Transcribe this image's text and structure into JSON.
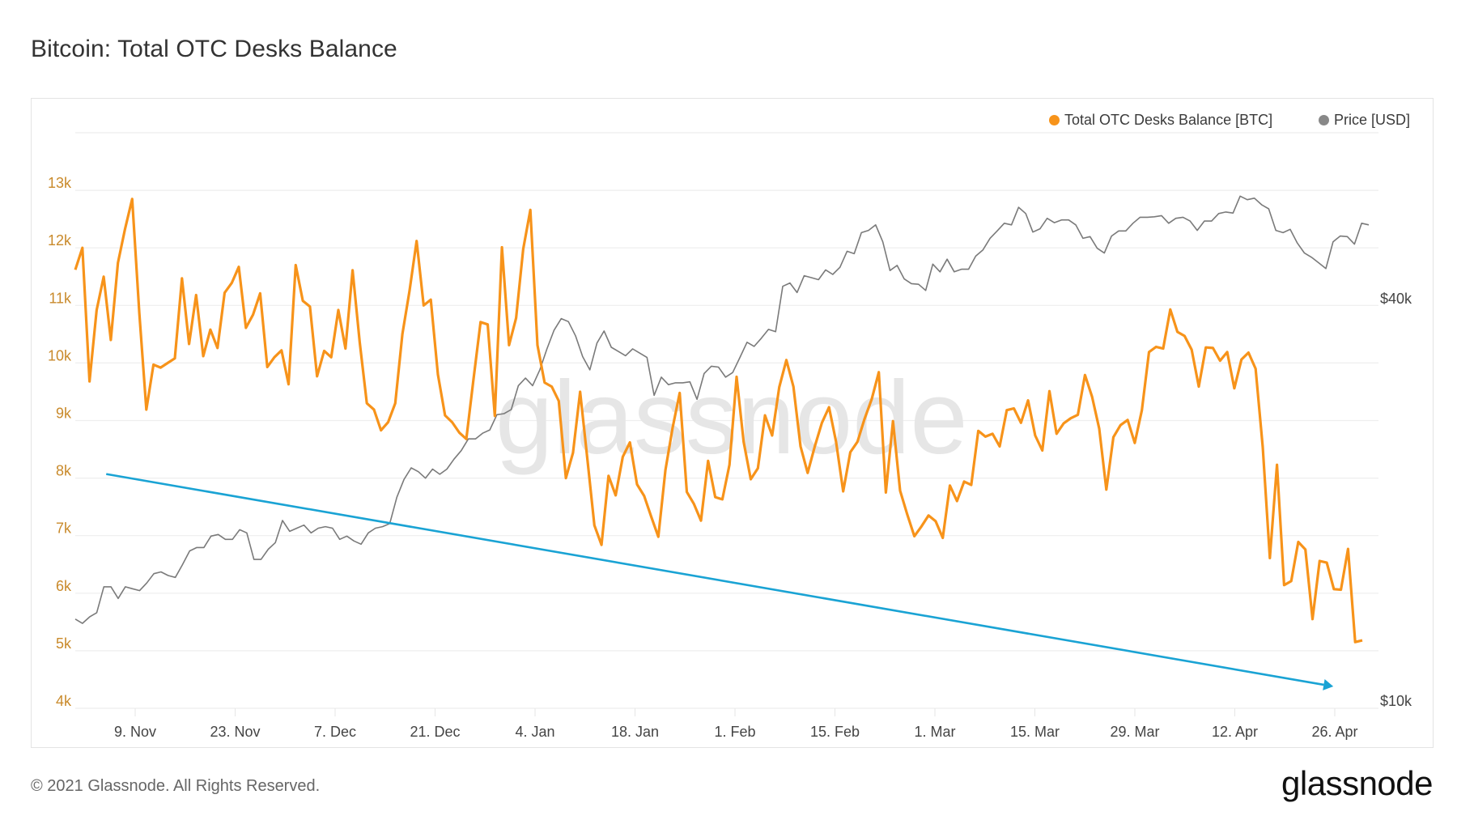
{
  "title": "Bitcoin: Total OTC Desks Balance",
  "legend": [
    {
      "label": "Total OTC Desks Balance [BTC]",
      "color": "#f7931a"
    },
    {
      "label": "Price [USD]",
      "color": "#888888"
    }
  ],
  "footer": {
    "copyright": "© 2021 Glassnode. All Rights Reserved.",
    "logo": "glassnode"
  },
  "watermark": "glassnode",
  "colors": {
    "balance": "#f7931a",
    "price": "#7a7a7a",
    "trend_arrow": "#1aa3d4",
    "left_axis_labels": "#c98a2b",
    "right_axis_labels": "#444444",
    "grid": "#eeeeee",
    "watermark": "#e6e6e6"
  },
  "chart_data": {
    "type": "line",
    "title": "Bitcoin: Total OTC Desks Balance",
    "x_range": [
      "1 Nov 2020",
      "30 Apr 2021"
    ],
    "x_ticks": [
      "9. Nov",
      "23. Nov",
      "7. Dec",
      "21. Dec",
      "4. Jan",
      "18. Jan",
      "1. Feb",
      "15. Feb",
      "1. Mar",
      "15. Mar",
      "29. Mar",
      "12. Apr",
      "26. Apr"
    ],
    "left_axis": {
      "label": "Total OTC Desks Balance [BTC]",
      "ticks": [
        "4k",
        "5k",
        "6k",
        "7k",
        "8k",
        "9k",
        "10k",
        "11k",
        "12k",
        "13k"
      ],
      "ylim": [
        4000,
        14000
      ],
      "scale": "linear"
    },
    "right_axis": {
      "label": "Price [USD]",
      "ticks": [
        "$10k",
        "$40k"
      ],
      "scale": "log"
    },
    "grid": true,
    "legend_position": "top-right",
    "series": [
      {
        "name": "Total OTC Desks Balance [BTC]",
        "axis": "left",
        "unit": "k BTC",
        "values": [
          11.62,
          12.0,
          9.68,
          10.92,
          11.5,
          10.4,
          11.74,
          12.33,
          12.85,
          10.87,
          9.19,
          9.97,
          9.92,
          10.0,
          10.08,
          11.47,
          10.33,
          11.18,
          10.12,
          10.58,
          10.26,
          11.22,
          11.39,
          11.67,
          10.61,
          10.84,
          11.21,
          9.93,
          10.1,
          10.22,
          9.63,
          11.7,
          11.08,
          10.98,
          9.77,
          10.21,
          10.1,
          10.92,
          10.25,
          11.61,
          10.36,
          9.3,
          9.19,
          8.83,
          8.97,
          9.3,
          10.5,
          11.25,
          12.12,
          11.0,
          11.1,
          9.8,
          9.09,
          8.97,
          8.79,
          8.68,
          9.71,
          10.71,
          10.67,
          9.08,
          12.01,
          10.31,
          10.78,
          11.98,
          12.66,
          10.31,
          9.66,
          9.59,
          9.34,
          8.0,
          8.44,
          9.5,
          8.35,
          7.18,
          6.84,
          8.04,
          7.7,
          8.37,
          8.62,
          7.89,
          7.69,
          7.33,
          6.98,
          8.14,
          8.87,
          9.48,
          7.76,
          7.55,
          7.26,
          8.3,
          7.67,
          7.63,
          8.23,
          9.76,
          8.63,
          7.98,
          8.17,
          9.09,
          8.74,
          9.58,
          10.05,
          9.59,
          8.55,
          8.09,
          8.55,
          8.96,
          9.23,
          8.63,
          7.77,
          8.45,
          8.63,
          9.03,
          9.37,
          9.84,
          7.75,
          8.99,
          7.78,
          7.37,
          6.99,
          7.16,
          7.35,
          7.25,
          6.96,
          7.87,
          7.6,
          7.94,
          7.88,
          8.82,
          8.72,
          8.77,
          8.55,
          9.18,
          9.21,
          8.96,
          9.35,
          8.74,
          8.48,
          9.51,
          8.77,
          8.95,
          9.04,
          9.1,
          9.79,
          9.41,
          8.86,
          7.8,
          8.71,
          8.92,
          9.01,
          8.61,
          9.18,
          10.19,
          10.28,
          10.25,
          10.93,
          10.54,
          10.47,
          10.23,
          9.59,
          10.27,
          10.26,
          10.04,
          10.19,
          9.56,
          10.06,
          10.18,
          9.9,
          8.54,
          6.61,
          8.23,
          6.14,
          6.21,
          6.89,
          6.76,
          5.55,
          6.56,
          6.53,
          6.07,
          6.06,
          6.77,
          5.15,
          5.18
        ]
      },
      {
        "name": "Price [USD]",
        "axis": "right",
        "unit": "k USD",
        "values": [
          13.6,
          13.4,
          13.7,
          13.9,
          15.2,
          15.2,
          14.6,
          15.2,
          15.1,
          15.0,
          15.4,
          15.9,
          16.0,
          15.8,
          15.7,
          16.4,
          17.2,
          17.4,
          17.4,
          18.1,
          18.2,
          17.9,
          17.9,
          18.5,
          18.3,
          16.7,
          16.7,
          17.3,
          17.7,
          19.1,
          18.4,
          18.6,
          18.8,
          18.3,
          18.6,
          18.7,
          18.6,
          17.9,
          18.1,
          17.8,
          17.6,
          18.3,
          18.6,
          18.7,
          18.9,
          20.7,
          22.0,
          22.9,
          22.6,
          22.1,
          22.8,
          22.4,
          22.8,
          23.6,
          24.3,
          25.3,
          25.3,
          25.8,
          26.1,
          27.5,
          27.6,
          28.0,
          30.4,
          31.2,
          30.4,
          32.1,
          34.5,
          36.8,
          38.3,
          37.9,
          36.1,
          33.6,
          32.1,
          35.2,
          36.7,
          34.7,
          34.2,
          33.7,
          34.5,
          34.0,
          33.5,
          29.4,
          31.3,
          30.5,
          30.7,
          30.7,
          30.8,
          29.0,
          31.7,
          32.5,
          32.4,
          31.3,
          31.8,
          33.5,
          35.3,
          34.8,
          35.8,
          36.9,
          36.6,
          42.8,
          43.3,
          41.9,
          44.4,
          44.1,
          43.8,
          45.3,
          44.6,
          45.7,
          48.3,
          47.9,
          51.5,
          51.9,
          52.9,
          49.9,
          45.2,
          46.0,
          43.9,
          43.2,
          43.1,
          42.2,
          46.2,
          45.0,
          47.0,
          45.0,
          45.4,
          45.4,
          47.5,
          48.5,
          50.5,
          51.8,
          53.2,
          52.9,
          56.2,
          55.0,
          51.6,
          52.2,
          54.1,
          53.3,
          53.8,
          53.8,
          52.9,
          50.5,
          50.8,
          48.8,
          48.0,
          50.9,
          51.8,
          51.8,
          53.2,
          54.3,
          54.3,
          54.4,
          54.6,
          53.2,
          54.1,
          54.3,
          53.6,
          51.9,
          53.6,
          53.6,
          55.0,
          55.3,
          55.1,
          58.4,
          57.7,
          58.0,
          56.7,
          55.9,
          51.9,
          51.5,
          52.1,
          49.7,
          48.0,
          47.3,
          46.4,
          45.5,
          49.9,
          50.9,
          50.8,
          49.5,
          53.2,
          52.9
        ]
      }
    ],
    "annotations": [
      {
        "type": "arrow",
        "description": "Downward trend arrow",
        "color": "#1aa3d4",
        "from": {
          "date_index": 4,
          "balance_k": 8.07
        },
        "to": {
          "date_index": 178,
          "balance_k": 4.38
        }
      }
    ]
  }
}
